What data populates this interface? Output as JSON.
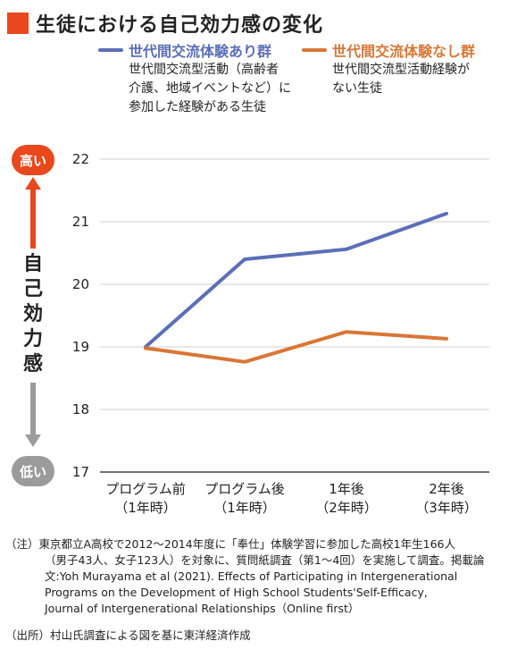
{
  "title": "生徒における自己効力感の変化",
  "legend": [
    {
      "name": "世代間交流体験あり群",
      "desc": [
        "世代間交流型活動（高齢者",
        "介護、地域イベントなど）に",
        "参加した経験がある生徒"
      ],
      "color": "#5b6fb8"
    },
    {
      "name": "世代間交流体験なし群",
      "desc": [
        "世代間交流型活動経験が",
        "ない生徒"
      ],
      "color": "#d97635"
    }
  ],
  "y_axis": {
    "high_label": "高い",
    "low_label": "低い",
    "label": "自己効力感"
  },
  "chart_data": {
    "type": "line",
    "categories": [
      [
        "プログラム前",
        "（1年時）"
      ],
      [
        "プログラム後",
        "（1年時）"
      ],
      [
        "1年後",
        "（2年時）"
      ],
      [
        "2年後",
        "（3年時）"
      ]
    ],
    "series": [
      {
        "name": "世代間交流体験あり群",
        "values": [
          19.0,
          20.4,
          20.56,
          21.13
        ],
        "color": "#5b6fb8"
      },
      {
        "name": "世代間交流体験なし群",
        "values": [
          18.98,
          18.76,
          19.24,
          19.13
        ],
        "color": "#d97635"
      }
    ],
    "ylim": [
      17,
      22
    ],
    "yticks": [
      "22",
      "21",
      "20",
      "19",
      "18",
      "17"
    ],
    "grid": true
  },
  "note": {
    "first": "（注）東京都立A高校で2012〜2014年度に「奉仕」体験学習に参加した高校1年生166人",
    "rest": [
      "（男子43人、女子123人）を対象に、質問紙調査（第1〜4回）を実施して調査。掲載論",
      "文:Yoh Murayama et al (2021). Effects of Participating in Intergenerational",
      "Programs on the Development of High School Students'Self-Efficacy,",
      "Journal of Intergenerational Relationships（Online first）"
    ]
  },
  "source": "（出所）村山氏調査による図を基に東洋経済作成"
}
